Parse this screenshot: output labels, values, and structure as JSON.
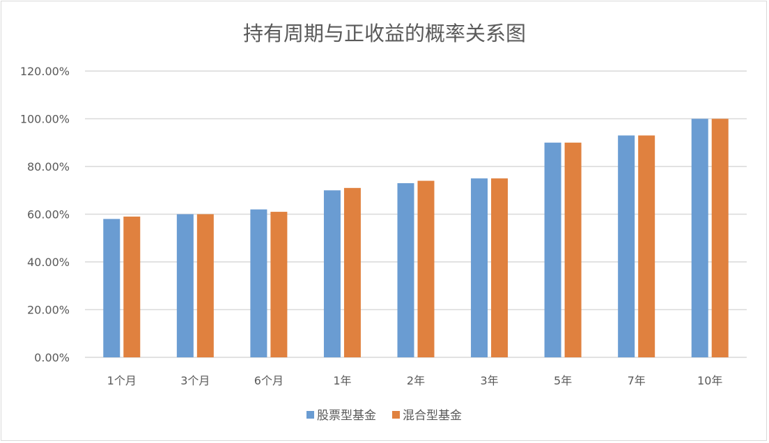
{
  "chart_data": {
    "type": "bar",
    "title": "持有周期与正收益的概率关系图",
    "categories": [
      "1个月",
      "3个月",
      "6个月",
      "1年",
      "2年",
      "3年",
      "5年",
      "7年",
      "10年"
    ],
    "series": [
      {
        "name": "股票型基金",
        "color": "#6a9cd2",
        "values": [
          58,
          60,
          62,
          70,
          73,
          75,
          90,
          93,
          100
        ]
      },
      {
        "name": "混合型基金",
        "color": "#e0813f",
        "values": [
          59,
          60,
          61,
          71,
          74,
          75,
          90,
          93,
          100
        ]
      }
    ],
    "yticks": [
      "0.00%",
      "20.00%",
      "40.00%",
      "60.00%",
      "80.00%",
      "100.00%",
      "120.00%"
    ],
    "ylim": [
      0,
      120
    ],
    "ylabel": "",
    "xlabel": "",
    "grid": true,
    "legend": "bottom"
  }
}
